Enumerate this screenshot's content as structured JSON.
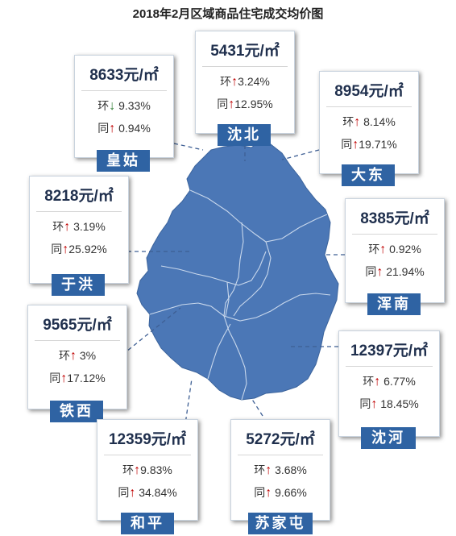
{
  "title": "2018年2月区域商品住宅成交均价图",
  "unit": "元/㎡",
  "colors": {
    "map": "#4b77b6",
    "label_bg": "#2f63a3",
    "up": "#c00000",
    "down": "#2e7d32"
  },
  "districts": [
    {
      "key": "huanggu",
      "name": "皇姑",
      "price": "8633",
      "mom_label": "环",
      "mom_dir": "down",
      "mom": "9.33%",
      "yoy_label": "同",
      "yoy_dir": "up",
      "yoy": "0.94%"
    },
    {
      "key": "shenbei",
      "name": "沈北",
      "price": "5431",
      "mom_label": "环",
      "mom_dir": "up",
      "mom": "3.24%",
      "yoy_label": "同",
      "yoy_dir": "up",
      "yoy": "12.95%"
    },
    {
      "key": "dadong",
      "name": "大东",
      "price": "8954",
      "mom_label": "环",
      "mom_dir": "up",
      "mom": "8.14%",
      "yoy_label": "同",
      "yoy_dir": "up",
      "yoy": "19.71%"
    },
    {
      "key": "yuhong",
      "name": "于洪",
      "price": "8218",
      "mom_label": "环",
      "mom_dir": "up",
      "mom": "3.19%",
      "yoy_label": "同",
      "yoy_dir": "up",
      "yoy": "25.92%"
    },
    {
      "key": "hunnan",
      "name": "浑南",
      "price": "8385",
      "mom_label": "环",
      "mom_dir": "up",
      "mom": "0.92%",
      "yoy_label": "同",
      "yoy_dir": "up",
      "yoy": "21.94%"
    },
    {
      "key": "tiexi",
      "name": "铁西",
      "price": "9565",
      "mom_label": "环",
      "mom_dir": "up",
      "mom": "3%",
      "yoy_label": "同",
      "yoy_dir": "up",
      "yoy": "17.12%"
    },
    {
      "key": "shenhe",
      "name": "沈河",
      "price": "12397",
      "mom_label": "环",
      "mom_dir": "up",
      "mom": "6.77%",
      "yoy_label": "同",
      "yoy_dir": "up",
      "yoy": "18.45%"
    },
    {
      "key": "heping",
      "name": "和平",
      "price": "12359",
      "mom_label": "环",
      "mom_dir": "up",
      "mom": "9.83%",
      "yoy_label": "同",
      "yoy_dir": "up",
      "yoy": "34.84%"
    },
    {
      "key": "sujiatun",
      "name": "苏家屯",
      "price": "5272",
      "mom_label": "环",
      "mom_dir": "up",
      "mom": "3.68%",
      "yoy_label": "同",
      "yoy_dir": "up",
      "yoy": "9.66%"
    }
  ]
}
